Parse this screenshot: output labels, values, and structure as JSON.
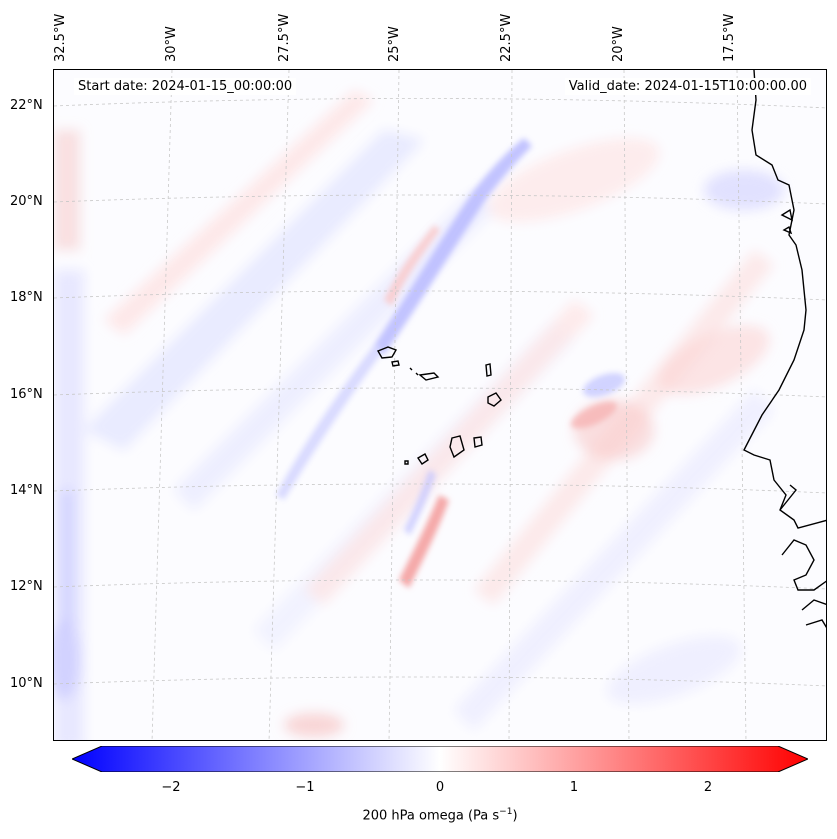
{
  "map": {
    "start_date": "Start date: 2024-01-15_00:00:00",
    "valid_date": "Valid_date: 2024-01-15T10:00:00.00",
    "lon_labels": [
      "32.5°W",
      "30°W",
      "27.5°W",
      "25°W",
      "22.5°W",
      "20°W",
      "17.5°W"
    ],
    "lat_labels": [
      "22°N",
      "20°N",
      "18°N",
      "16°N",
      "14°N",
      "12°N",
      "10°N"
    ],
    "coastline_color": "#000000",
    "grid": true
  },
  "colorbar": {
    "label_text": "200 hPa omega (Pa s",
    "label_sup": "−1",
    "label_close": ")",
    "ticks": [
      "−2",
      "−1",
      "0",
      "1",
      "2"
    ],
    "range": [
      -2.6,
      2.6
    ],
    "negative_color": "#0000ff",
    "positive_color": "#ff0000",
    "extend": "both"
  }
}
